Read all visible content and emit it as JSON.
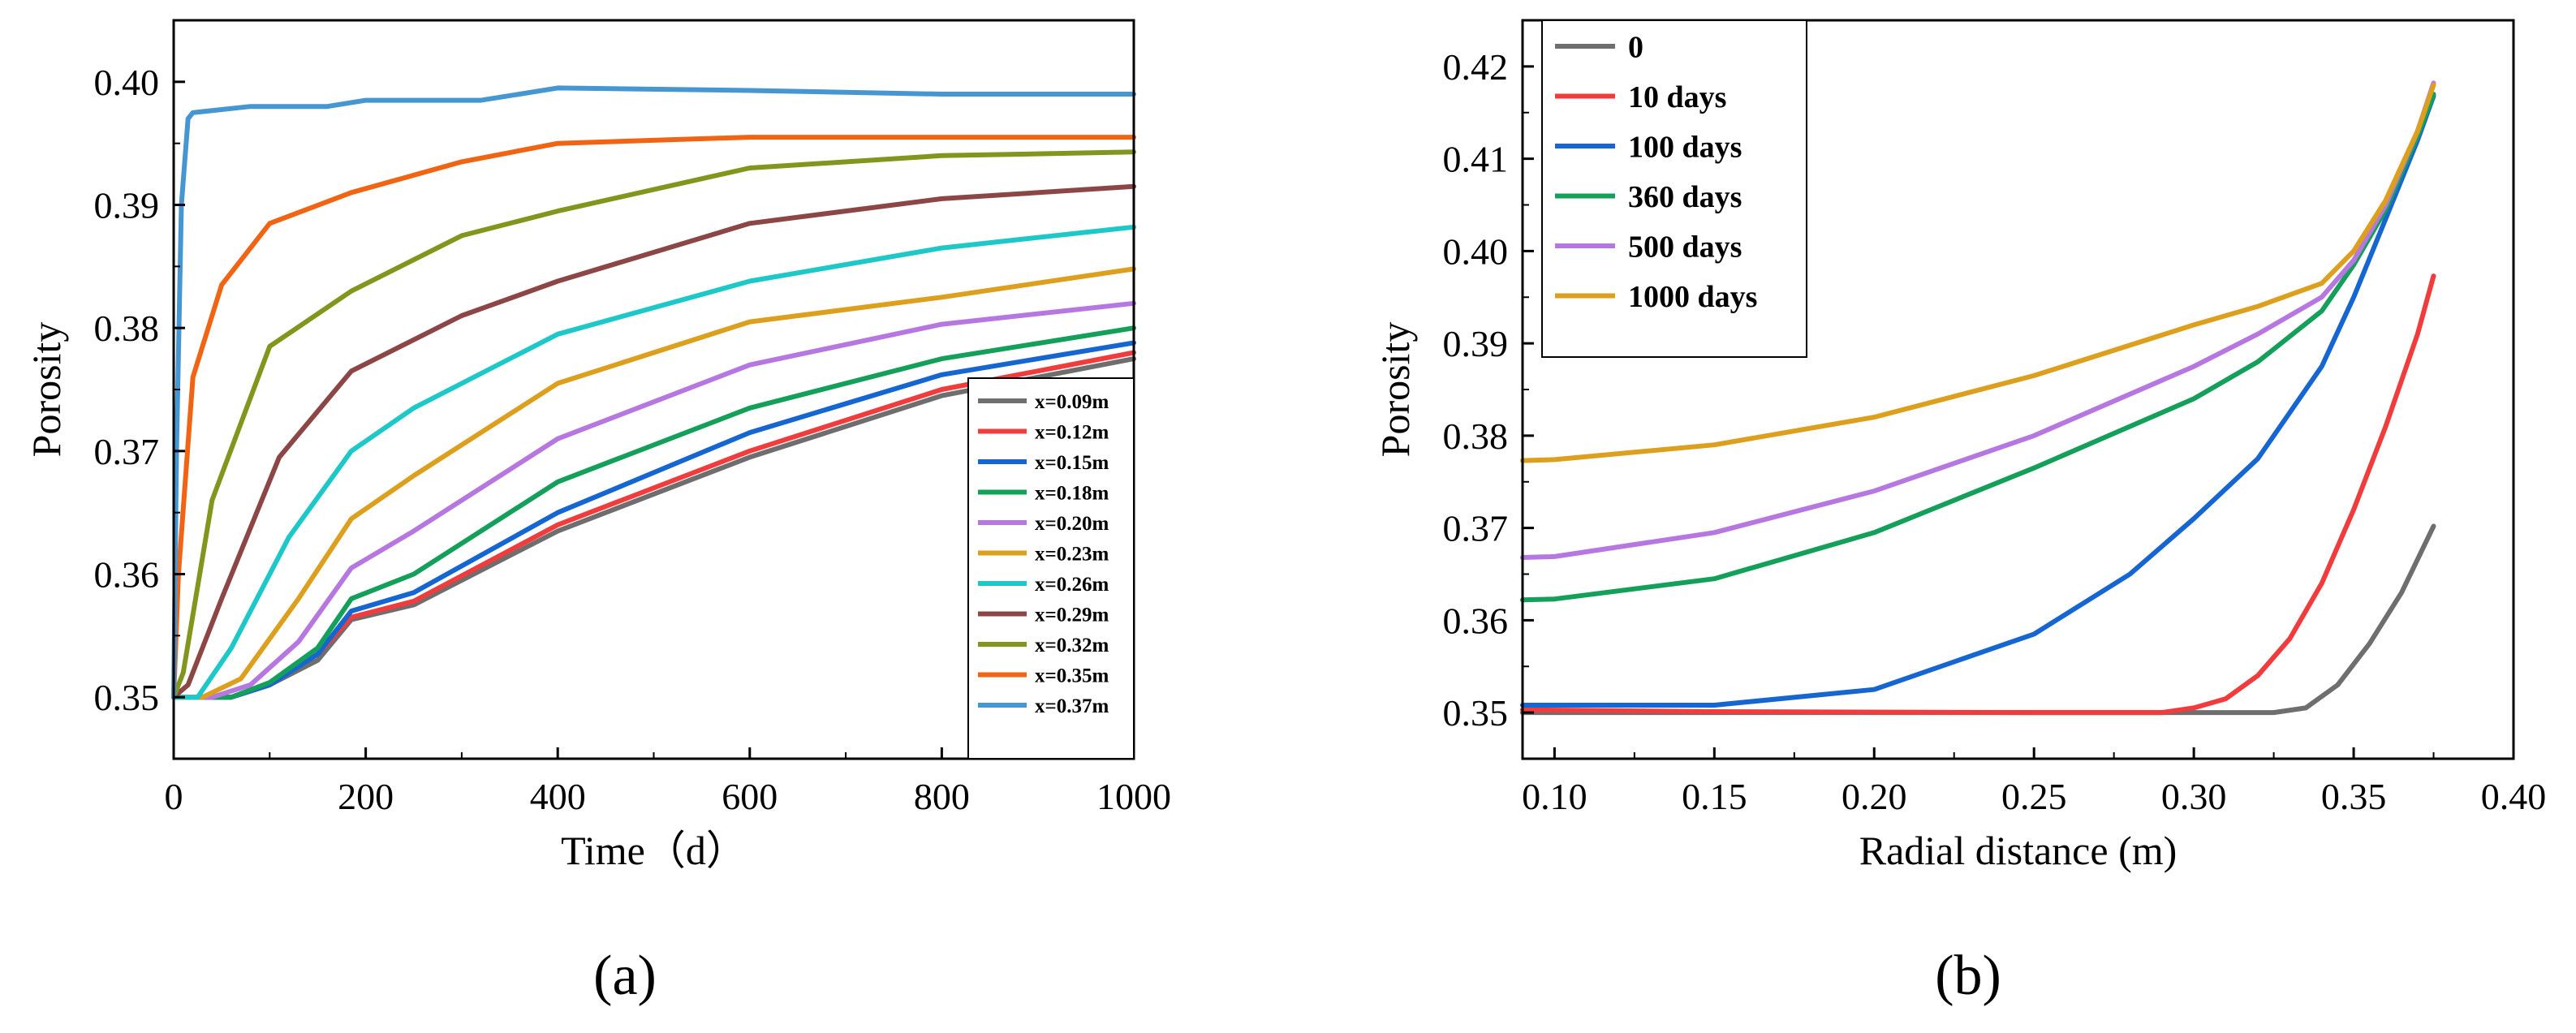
{
  "panel_labels": [
    "(a)",
    "(b)"
  ],
  "chart_data": [
    {
      "type": "line",
      "xlabel": "Time（d）",
      "ylabel": "Porosity",
      "xlim": [
        0,
        1000
      ],
      "ylim": [
        0.345,
        0.405
      ],
      "xticks": [
        0,
        200,
        400,
        600,
        800,
        1000
      ],
      "yticks": [
        0.35,
        0.36,
        0.37,
        0.38,
        0.39,
        0.4
      ],
      "xtick_labels": [
        "0",
        "200",
        "400",
        "600",
        "800",
        "1000"
      ],
      "ytick_labels": [
        "0.35",
        "0.36",
        "0.37",
        "0.38",
        "0.39",
        "0.40"
      ],
      "legend_position": "bottom-right",
      "series": [
        {
          "name": "x=0.09m",
          "color": "#6e6e6e",
          "x": [
            0,
            60,
            100,
            150,
            185,
            250,
            400,
            600,
            800,
            1000
          ],
          "y": [
            0.35,
            0.35,
            0.351,
            0.353,
            0.3563,
            0.3575,
            0.3635,
            0.3695,
            0.3745,
            0.3775
          ]
        },
        {
          "name": "x=0.12m",
          "color": "#f03c3c",
          "x": [
            0,
            60,
            100,
            150,
            185,
            250,
            400,
            600,
            800,
            1000
          ],
          "y": [
            0.35,
            0.35,
            0.351,
            0.3535,
            0.3565,
            0.3578,
            0.364,
            0.37,
            0.375,
            0.378
          ]
        },
        {
          "name": "x=0.15m",
          "color": "#1666d2",
          "x": [
            0,
            60,
            100,
            150,
            185,
            250,
            400,
            600,
            800,
            1000
          ],
          "y": [
            0.35,
            0.35,
            0.351,
            0.3535,
            0.357,
            0.3585,
            0.365,
            0.3715,
            0.3762,
            0.3788
          ]
        },
        {
          "name": "x=0.18m",
          "color": "#14a05a",
          "x": [
            0,
            60,
            100,
            150,
            185,
            250,
            400,
            600,
            800,
            1000
          ],
          "y": [
            0.35,
            0.35,
            0.3512,
            0.354,
            0.358,
            0.36,
            0.3675,
            0.3735,
            0.3775,
            0.38
          ]
        },
        {
          "name": "x=0.20m",
          "color": "#b678e0",
          "x": [
            0,
            40,
            80,
            130,
            185,
            250,
            400,
            600,
            800,
            1000
          ],
          "y": [
            0.35,
            0.35,
            0.351,
            0.3545,
            0.3605,
            0.3635,
            0.371,
            0.377,
            0.3803,
            0.382
          ]
        },
        {
          "name": "x=0.23m",
          "color": "#dca01e",
          "x": [
            0,
            30,
            70,
            130,
            185,
            250,
            400,
            600,
            800,
            1000
          ],
          "y": [
            0.35,
            0.35,
            0.3515,
            0.358,
            0.3645,
            0.368,
            0.3755,
            0.3805,
            0.3825,
            0.3848
          ]
        },
        {
          "name": "x=0.26m",
          "color": "#1ec8c8",
          "x": [
            0,
            25,
            60,
            120,
            185,
            250,
            400,
            600,
            800,
            1000
          ],
          "y": [
            0.35,
            0.35,
            0.354,
            0.363,
            0.37,
            0.3735,
            0.3795,
            0.3838,
            0.3865,
            0.3882
          ]
        },
        {
          "name": "x=0.29m",
          "color": "#8c4646",
          "x": [
            0,
            15,
            50,
            110,
            185,
            300,
            400,
            600,
            800,
            1000
          ],
          "y": [
            0.35,
            0.351,
            0.358,
            0.3695,
            0.3765,
            0.381,
            0.3838,
            0.3885,
            0.3905,
            0.3915
          ]
        },
        {
          "name": "x=0.32m",
          "color": "#82961e",
          "x": [
            0,
            10,
            40,
            100,
            185,
            300,
            400,
            600,
            800,
            1000
          ],
          "y": [
            0.35,
            0.352,
            0.366,
            0.3785,
            0.383,
            0.3875,
            0.3895,
            0.393,
            0.394,
            0.3943
          ]
        },
        {
          "name": "x=0.35m",
          "color": "#f06414",
          "x": [
            0,
            5,
            20,
            50,
            100,
            185,
            300,
            400,
            600,
            800,
            1000
          ],
          "y": [
            0.35,
            0.36,
            0.376,
            0.3835,
            0.3885,
            0.391,
            0.3935,
            0.395,
            0.3955,
            0.3955,
            0.3955
          ]
        },
        {
          "name": "x=0.37m",
          "color": "#4696d2",
          "x": [
            0,
            3,
            8,
            15,
            20,
            80,
            160,
            200,
            320,
            400,
            600,
            800,
            1000
          ],
          "y": [
            0.35,
            0.37,
            0.39,
            0.397,
            0.3975,
            0.398,
            0.398,
            0.3985,
            0.3985,
            0.3995,
            0.3993,
            0.399,
            0.399
          ]
        }
      ]
    },
    {
      "type": "line",
      "xlabel": "Radial distance (m)",
      "ylabel": "Porosity",
      "xlim": [
        0.09,
        0.4
      ],
      "ylim": [
        0.345,
        0.425
      ],
      "xticks": [
        0.1,
        0.15,
        0.2,
        0.25,
        0.3,
        0.35,
        0.4
      ],
      "yticks": [
        0.35,
        0.36,
        0.37,
        0.38,
        0.39,
        0.4,
        0.41,
        0.42
      ],
      "xtick_labels": [
        "0.10",
        "0.15",
        "0.20",
        "0.25",
        "0.30",
        "0.35",
        "0.40"
      ],
      "ytick_labels": [
        "0.35",
        "0.36",
        "0.37",
        "0.38",
        "0.39",
        "0.40",
        "0.41",
        "0.42"
      ],
      "legend_position": "top-left",
      "series": [
        {
          "name": "0",
          "color": "#6e6e6e",
          "x": [
            0.09,
            0.2,
            0.3,
            0.325,
            0.335,
            0.345,
            0.355,
            0.365,
            0.375
          ],
          "y": [
            0.35,
            0.35,
            0.35,
            0.35,
            0.3505,
            0.353,
            0.3575,
            0.363,
            0.3702
          ]
        },
        {
          "name": "10 days",
          "color": "#f03c3c",
          "x": [
            0.09,
            0.15,
            0.25,
            0.29,
            0.3,
            0.31,
            0.32,
            0.33,
            0.34,
            0.35,
            0.36,
            0.37,
            0.375
          ],
          "y": [
            0.3503,
            0.3501,
            0.35,
            0.35,
            0.3505,
            0.3515,
            0.354,
            0.358,
            0.364,
            0.372,
            0.381,
            0.391,
            0.3973
          ]
        },
        {
          "name": "100 days",
          "color": "#1666d2",
          "x": [
            0.09,
            0.15,
            0.2,
            0.25,
            0.28,
            0.3,
            0.32,
            0.34,
            0.35,
            0.36,
            0.37,
            0.375
          ],
          "y": [
            0.3508,
            0.3508,
            0.3525,
            0.3585,
            0.365,
            0.371,
            0.3775,
            0.3875,
            0.395,
            0.4035,
            0.412,
            0.4168
          ]
        },
        {
          "name": "360 days",
          "color": "#14a05a",
          "x": [
            0.09,
            0.1,
            0.15,
            0.2,
            0.25,
            0.3,
            0.32,
            0.34,
            0.35,
            0.36,
            0.37,
            0.375
          ],
          "y": [
            0.3622,
            0.3623,
            0.3645,
            0.3695,
            0.3765,
            0.384,
            0.388,
            0.3935,
            0.3985,
            0.4045,
            0.4125,
            0.417
          ]
        },
        {
          "name": "500 days",
          "color": "#b678e0",
          "x": [
            0.09,
            0.1,
            0.15,
            0.2,
            0.25,
            0.3,
            0.32,
            0.34,
            0.35,
            0.36,
            0.37,
            0.375
          ],
          "y": [
            0.3668,
            0.3669,
            0.3695,
            0.374,
            0.38,
            0.3875,
            0.391,
            0.395,
            0.399,
            0.405,
            0.413,
            0.4182
          ]
        },
        {
          "name": "1000 days",
          "color": "#dca01e",
          "x": [
            0.09,
            0.1,
            0.15,
            0.2,
            0.25,
            0.3,
            0.32,
            0.34,
            0.35,
            0.36,
            0.37,
            0.375
          ],
          "y": [
            0.3773,
            0.3774,
            0.379,
            0.382,
            0.3865,
            0.392,
            0.394,
            0.3965,
            0.4,
            0.4055,
            0.413,
            0.418
          ]
        }
      ]
    }
  ]
}
